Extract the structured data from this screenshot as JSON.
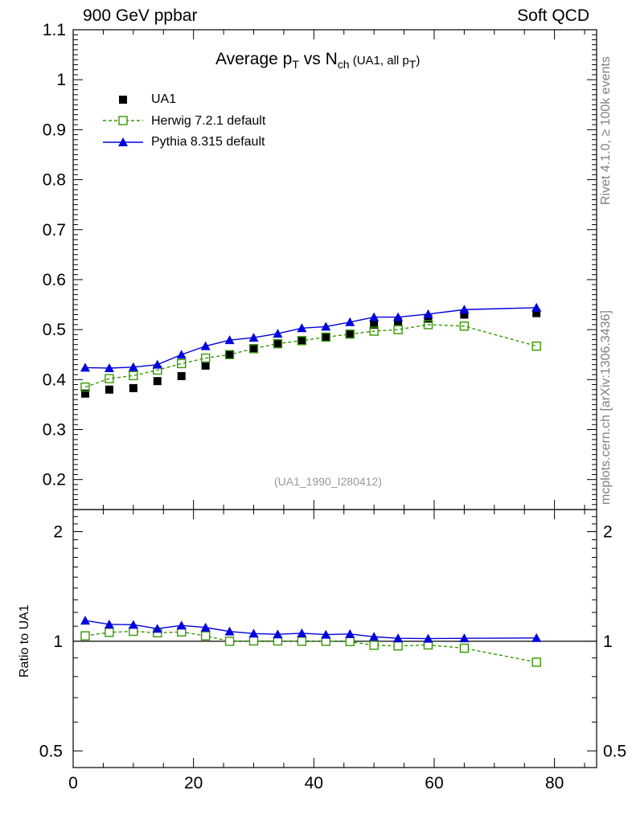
{
  "header": {
    "left": "900 GeV ppbar",
    "right": "Soft QCD"
  },
  "side_labels": {
    "rivet": "Rivet 4.1.0, ≥ 100k events",
    "mcplots": "mcplots.cern.ch [arXiv:1306.3436]"
  },
  "title": {
    "main": "Average p",
    "sub1": "T",
    "mid": " vs N",
    "sub2": "ch",
    "small": " (UA1, all p",
    "sub3": "T",
    "end": ")"
  },
  "watermark": "(UA1_1990_I280412)",
  "ratio_ylabel": "Ratio to UA1",
  "legend": {
    "ua1": "UA1",
    "herwig": "Herwig 7.2.1 default",
    "pythia": "Pythia 8.315 default"
  },
  "colors": {
    "ua1": "#000000",
    "herwig": "#339900",
    "pythia": "#0000dd"
  },
  "chart_data": {
    "type": "line",
    "x": [
      2,
      6,
      10,
      14,
      18,
      22,
      26,
      30,
      34,
      38,
      42,
      46,
      50,
      54,
      59,
      65,
      77
    ],
    "series": [
      {
        "name": "UA1",
        "style": "markers",
        "values": [
          0.372,
          0.38,
          0.383,
          0.397,
          0.407,
          0.428,
          0.45,
          0.461,
          0.471,
          0.478,
          0.485,
          0.492,
          0.51,
          0.515,
          0.522,
          0.53,
          0.533
        ]
      },
      {
        "name": "Herwig 7.2.1 default",
        "style": "dashed-open-squares",
        "values": [
          0.385,
          0.402,
          0.408,
          0.419,
          0.432,
          0.443,
          0.45,
          0.462,
          0.472,
          0.478,
          0.485,
          0.491,
          0.497,
          0.5,
          0.51,
          0.507,
          0.467
        ]
      },
      {
        "name": "Pythia 8.315 default",
        "style": "solid-triangles",
        "values": [
          0.424,
          0.423,
          0.425,
          0.43,
          0.45,
          0.467,
          0.479,
          0.484,
          0.492,
          0.503,
          0.506,
          0.515,
          0.525,
          0.525,
          0.531,
          0.54,
          0.544
        ]
      }
    ],
    "main_ylim": [
      0.14,
      1.1
    ],
    "main_yticks": [
      0.2,
      0.3,
      0.4,
      0.5,
      0.6,
      0.7,
      0.8,
      0.9,
      1,
      1.1
    ],
    "main_ytick_labels": [
      "0.2",
      "0.3",
      "0.4",
      "0.5",
      "0.6",
      "0.7",
      "0.8",
      "0.9",
      "1",
      "1.1"
    ],
    "xlim": [
      0,
      87
    ],
    "xticks": [
      0,
      20,
      40,
      60,
      80
    ],
    "xtick_labels": [
      "0",
      "20",
      "40",
      "60",
      "80"
    ],
    "ratio": {
      "herwig": [
        1.035,
        1.058,
        1.065,
        1.055,
        1.061,
        1.035,
        1.0,
        1.002,
        1.002,
        1.0,
        1.0,
        0.998,
        0.975,
        0.971,
        0.977,
        0.957,
        0.876
      ],
      "pythia": [
        1.14,
        1.113,
        1.11,
        1.083,
        1.105,
        1.091,
        1.064,
        1.05,
        1.045,
        1.052,
        1.043,
        1.047,
        1.029,
        1.019,
        1.017,
        1.019,
        1.021
      ]
    },
    "ratio_ylim": [
      0.45,
      2.3
    ],
    "ratio_yticks": [
      0.5,
      1,
      2
    ],
    "ratio_ytick_labels": [
      "0.5",
      "1",
      "2"
    ],
    "title": "Average pT vs Nch (UA1, all pT)",
    "ylabel": "",
    "xlabel": ""
  }
}
